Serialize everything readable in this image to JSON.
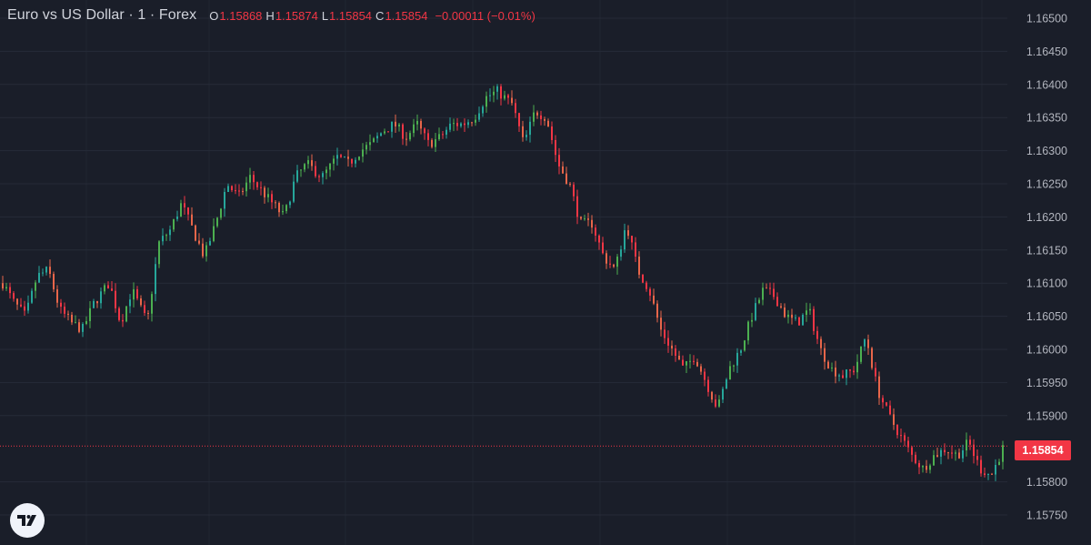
{
  "header": {
    "title": "Euro vs US Dollar · 1 · Forex",
    "ohlc": [
      {
        "key": "O",
        "value": "1.15868"
      },
      {
        "key": "H",
        "value": "1.15874"
      },
      {
        "key": "L",
        "value": "1.15854"
      },
      {
        "key": "C",
        "value": "1.15854"
      }
    ],
    "change": "−0.00011 (−0.01%)"
  },
  "last_price_label": "1.15854",
  "colors": {
    "background": "#1a1e29",
    "grid": "#262b38",
    "up": "#26a69a",
    "up_alt": "#4caf50",
    "down": "#f23645",
    "down_alt": "#e8664a",
    "axis_text": "#b2b5be",
    "last_price": "#f23645"
  },
  "logo": {
    "icon": "tradingview-logo-icon"
  },
  "chart_data": {
    "type": "candlestick",
    "title": "Euro vs US Dollar · 1 · Forex",
    "ylim": [
      1.1572,
      1.1652
    ],
    "y_ticks": [
      "1.16500",
      "1.16450",
      "1.16400",
      "1.16350",
      "1.16300",
      "1.16250",
      "1.16200",
      "1.16150",
      "1.16100",
      "1.16050",
      "1.16000",
      "1.15950",
      "1.15900",
      "1.15854",
      "1.15800",
      "1.15750"
    ],
    "last_price": 1.15854,
    "grid": true,
    "price_path": [
      [
        0,
        1.161
      ],
      [
        3,
        1.1607
      ],
      [
        6,
        1.1605
      ],
      [
        9,
        1.1611
      ],
      [
        12,
        1.1612
      ],
      [
        15,
        1.1606
      ],
      [
        18,
        1.1604
      ],
      [
        21,
        1.1603
      ],
      [
        24,
        1.1607
      ],
      [
        28,
        1.161
      ],
      [
        31,
        1.1604
      ],
      [
        34,
        1.1609
      ],
      [
        38,
        1.1604
      ],
      [
        41,
        1.1616
      ],
      [
        44,
        1.1618
      ],
      [
        47,
        1.1622
      ],
      [
        50,
        1.1618
      ],
      [
        53,
        1.1614
      ],
      [
        56,
        1.1619
      ],
      [
        59,
        1.1625
      ],
      [
        62,
        1.1623
      ],
      [
        65,
        1.1626
      ],
      [
        68,
        1.1624
      ],
      [
        71,
        1.1622
      ],
      [
        74,
        1.162
      ],
      [
        77,
        1.1626
      ],
      [
        80,
        1.1628
      ],
      [
        84,
        1.1626
      ],
      [
        88,
        1.1629
      ],
      [
        91,
        1.1628
      ],
      [
        94,
        1.163
      ],
      [
        97,
        1.1631
      ],
      [
        100,
        1.1633
      ],
      [
        103,
        1.1634
      ],
      [
        106,
        1.1632
      ],
      [
        109,
        1.1634
      ],
      [
        112,
        1.1631
      ],
      [
        115,
        1.1632
      ],
      [
        118,
        1.1634
      ],
      [
        121,
        1.1634
      ],
      [
        124,
        1.1635
      ],
      [
        127,
        1.1638
      ],
      [
        130,
        1.1639
      ],
      [
        134,
        1.1637
      ],
      [
        137,
        1.1631
      ],
      [
        140,
        1.1636
      ],
      [
        143,
        1.1635
      ],
      [
        146,
        1.1628
      ],
      [
        149,
        1.1625
      ],
      [
        152,
        1.1619
      ],
      [
        155,
        1.1619
      ],
      [
        158,
        1.1614
      ],
      [
        161,
        1.1612
      ],
      [
        164,
        1.1619
      ],
      [
        167,
        1.1612
      ],
      [
        170,
        1.1609
      ],
      [
        173,
        1.1603
      ],
      [
        176,
        1.16
      ],
      [
        179,
        1.1597
      ],
      [
        182,
        1.1599
      ],
      [
        185,
        1.1595
      ],
      [
        188,
        1.1591
      ],
      [
        191,
        1.1597
      ],
      [
        194,
        1.16
      ],
      [
        197,
        1.1605
      ],
      [
        200,
        1.1609
      ],
      [
        203,
        1.1608
      ],
      [
        206,
        1.1605
      ],
      [
        209,
        1.1604
      ],
      [
        212,
        1.1606
      ],
      [
        215,
        1.16
      ],
      [
        218,
        1.1597
      ],
      [
        221,
        1.1596
      ],
      [
        224,
        1.1597
      ],
      [
        227,
        1.1602
      ],
      [
        230,
        1.1594
      ],
      [
        233,
        1.159
      ],
      [
        236,
        1.1587
      ],
      [
        239,
        1.1584
      ],
      [
        242,
        1.1582
      ],
      [
        245,
        1.1584
      ],
      [
        248,
        1.1585
      ],
      [
        251,
        1.1584
      ],
      [
        254,
        1.1586
      ],
      [
        257,
        1.1582
      ],
      [
        260,
        1.1581
      ],
      [
        263,
        1.1585
      ]
    ]
  }
}
